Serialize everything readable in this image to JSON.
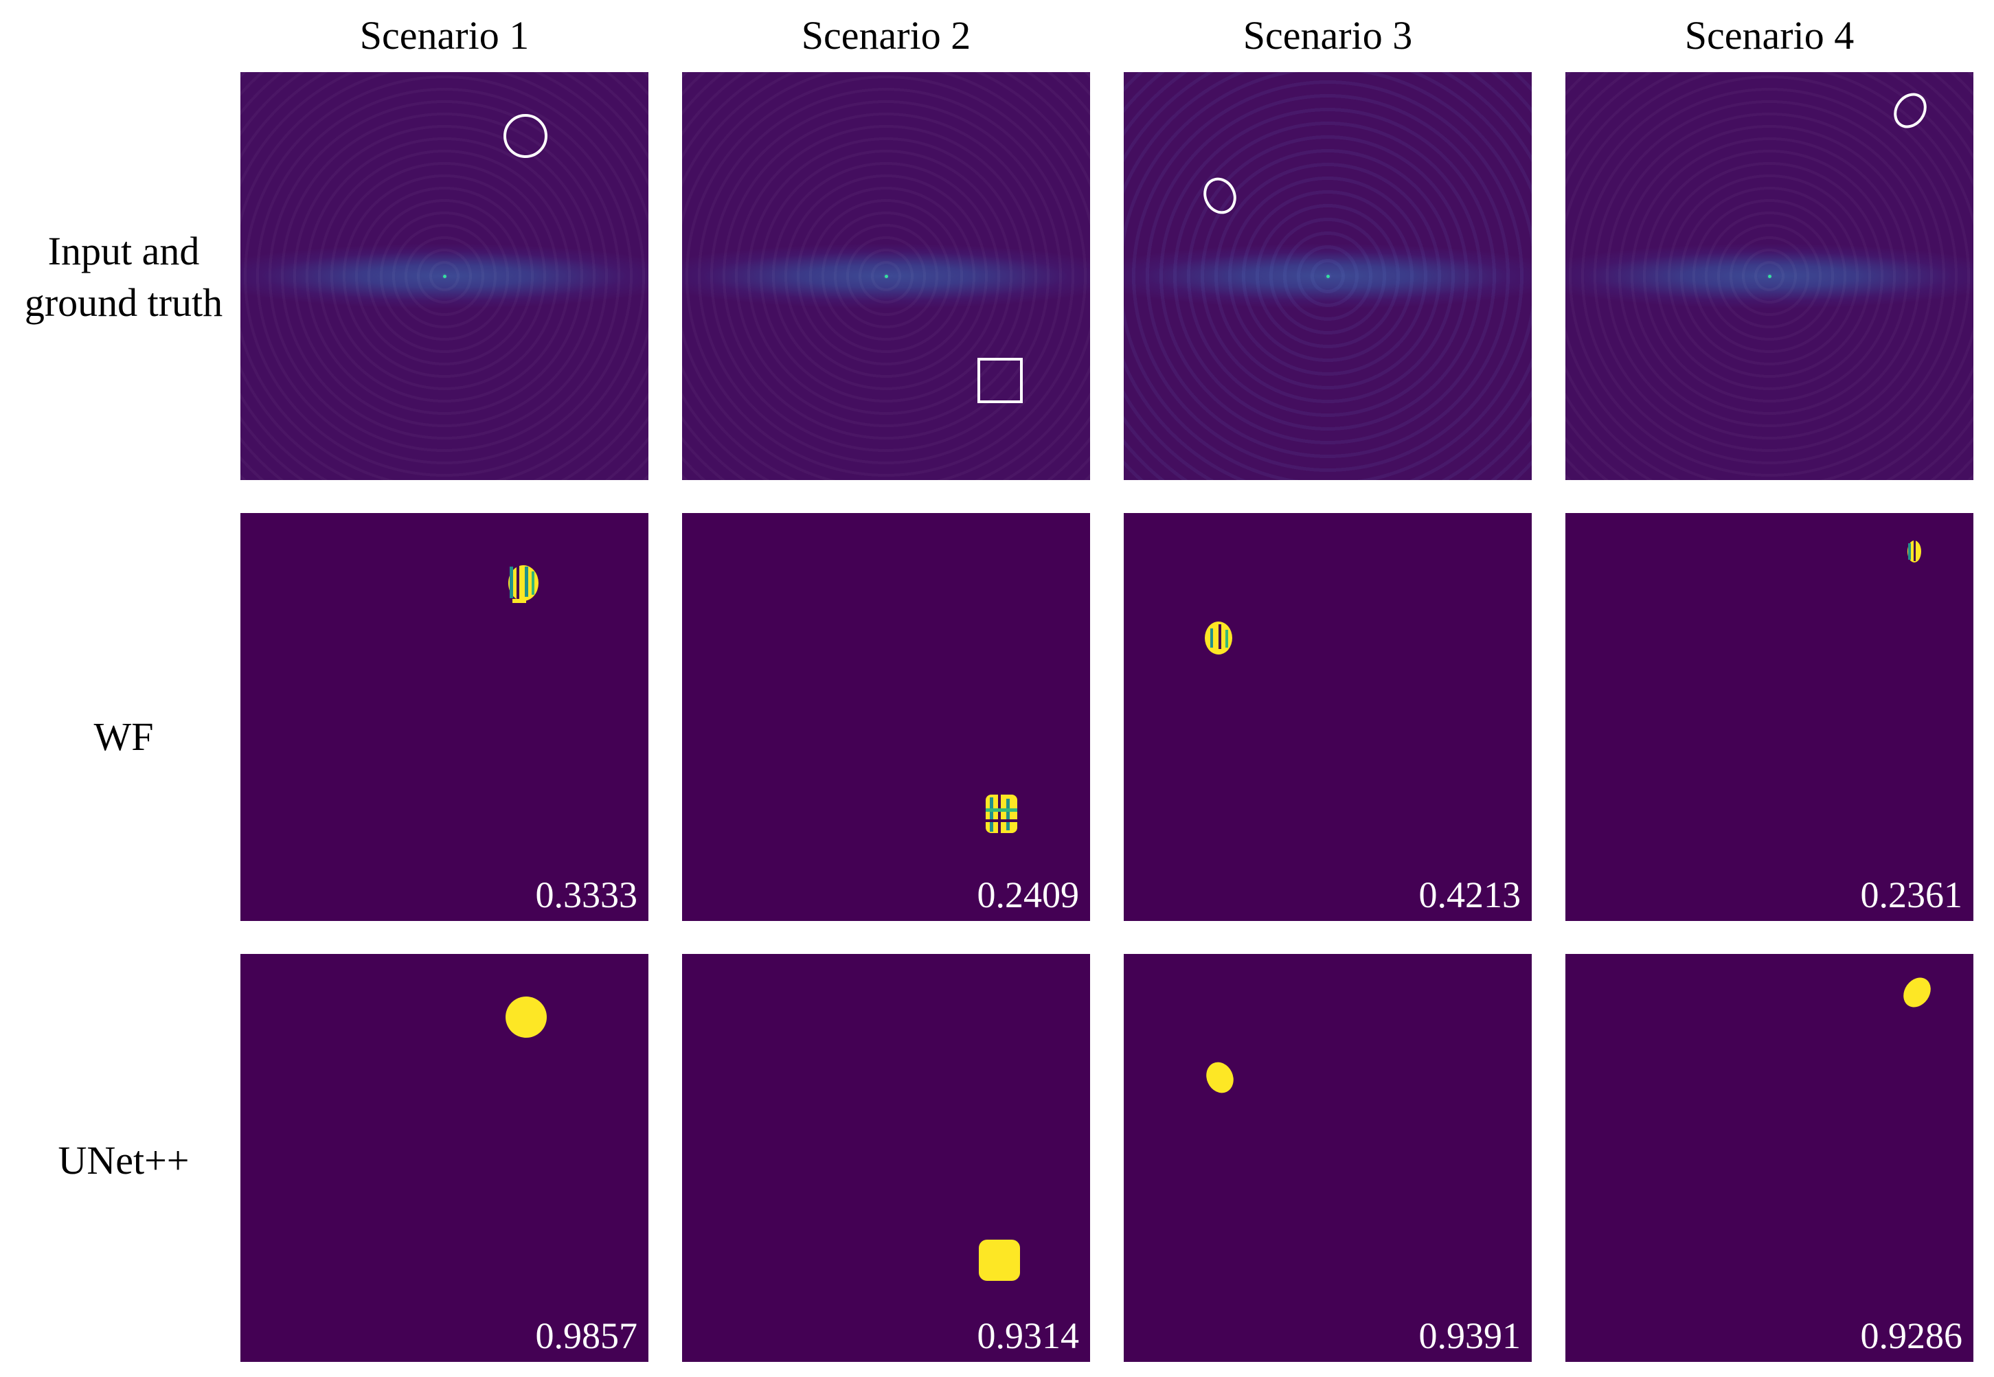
{
  "columns": [
    "Scenario 1",
    "Scenario 2",
    "Scenario 3",
    "Scenario 4"
  ],
  "rows": {
    "input": {
      "label_line1": "Input and",
      "label_line2": "ground truth"
    },
    "wf": {
      "label": "WF",
      "scores": [
        "0.3333",
        "0.2409",
        "0.4213",
        "0.2361"
      ]
    },
    "unet": {
      "label": "UNet++",
      "scores": [
        "0.9857",
        "0.9314",
        "0.9391",
        "0.9286"
      ]
    }
  },
  "colors": {
    "background": "#440154",
    "prediction": "#fde725",
    "mixed": "#21918c",
    "outline": "#ffffff"
  }
}
